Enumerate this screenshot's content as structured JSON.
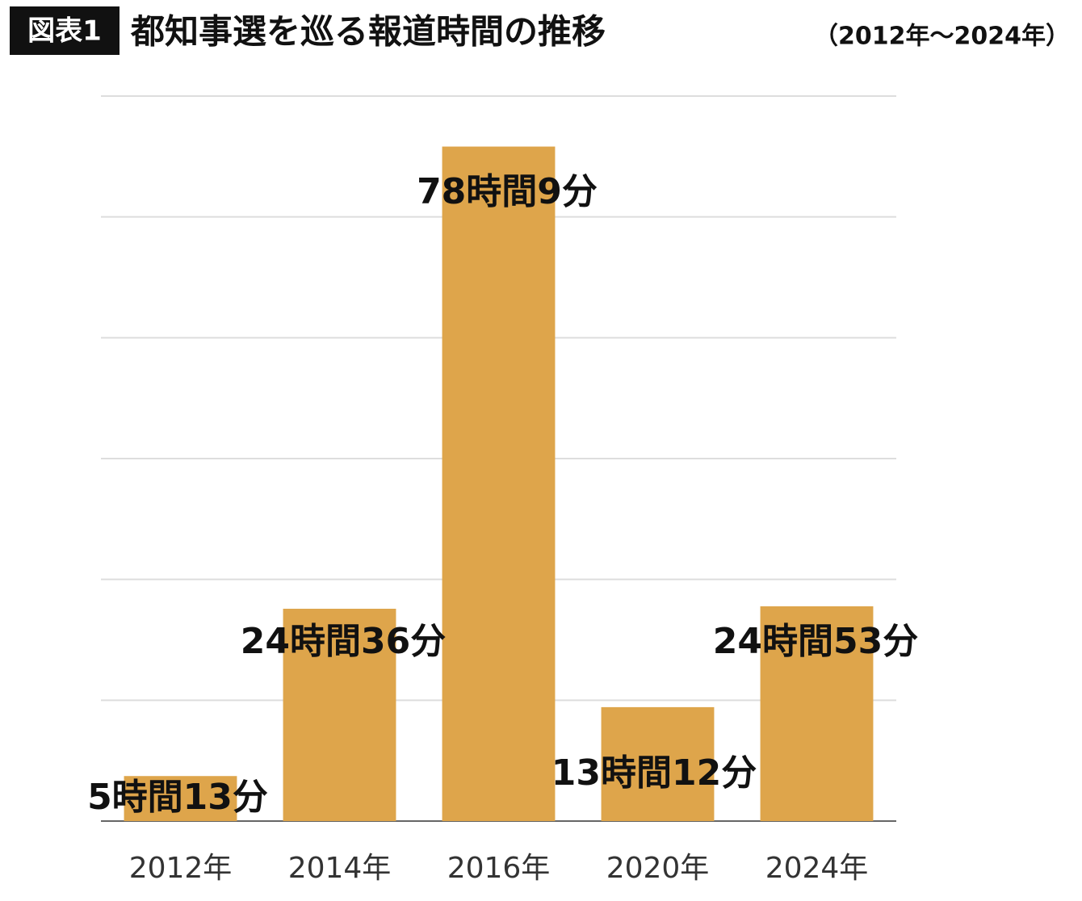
{
  "chart_data": {
    "type": "bar",
    "label": "図表1",
    "title": "都知事選を巡る報道時間の推移",
    "subtitle": "（2012年～2024年）",
    "categories": [
      "2012年",
      "2014年",
      "2016年",
      "2020年",
      "2024年"
    ],
    "values": [
      313,
      1476,
      4689,
      792,
      1493
    ],
    "value_labels": [
      "5時間13分",
      "24時間36分",
      "78時間9分",
      "13時間12分",
      "24時間53分"
    ],
    "color": "#dea54b",
    "ylim": [
      0,
      5040
    ],
    "yticks": [
      0,
      840,
      1680,
      2520,
      3360,
      4200,
      5040
    ],
    "grid": true
  }
}
